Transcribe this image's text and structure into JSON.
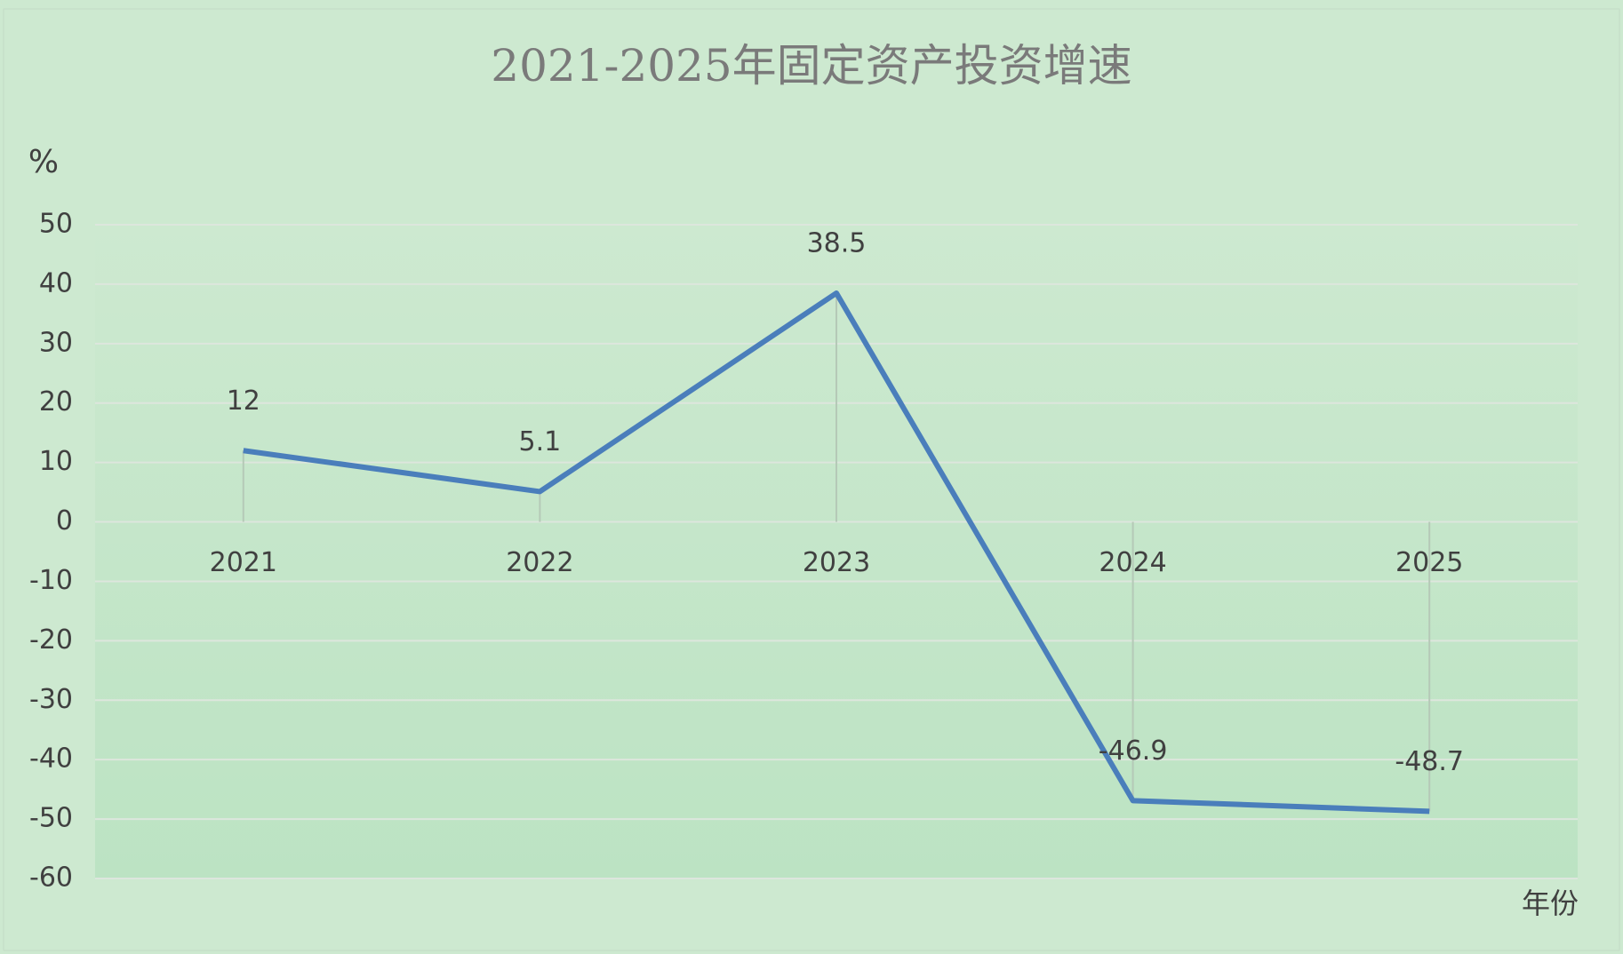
{
  "chart_data": {
    "type": "line",
    "title": "2021-2025年固定资产投资增速",
    "y_label": "%",
    "x_label": "年份",
    "categories": [
      "2021",
      "2022",
      "2023",
      "2024",
      "2025"
    ],
    "series": [
      {
        "name": "固定资产投资增速",
        "color": "#4a7ebb",
        "values": [
          12,
          5.1,
          38.5,
          -46.9,
          -48.7
        ]
      }
    ],
    "ylim": [
      -60,
      50
    ],
    "yticks": [
      -60,
      -50,
      -40,
      -30,
      -20,
      -10,
      0,
      10,
      20,
      30,
      40,
      50
    ],
    "grid": true,
    "drop_lines": true,
    "data_labels": true,
    "legend": false
  }
}
